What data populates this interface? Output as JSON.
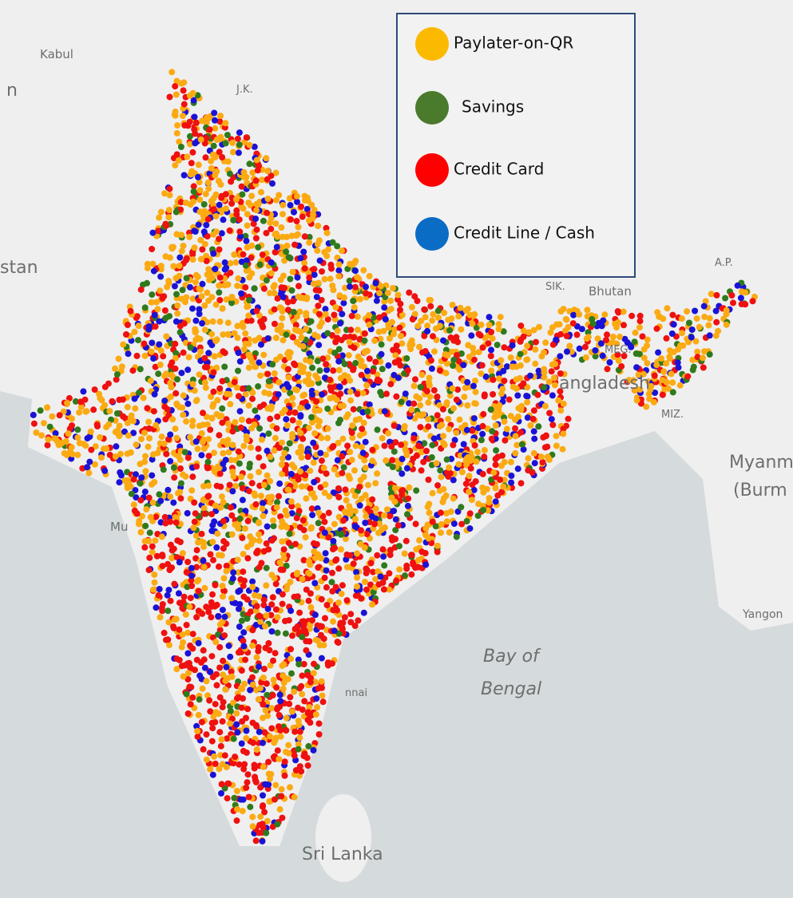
{
  "legend": {
    "items": [
      {
        "label": "Paylater-on-QR",
        "color": "#fbb900"
      },
      {
        "label": "Savings",
        "color": "#4a7a2c"
      },
      {
        "label": "Credit Card",
        "color": "#ff0000"
      },
      {
        "label": "Credit Line / Cash",
        "color": "#0a6cc4"
      }
    ]
  },
  "dot_colors": [
    "#fbaa12",
    "#1a12d6",
    "#ef1010",
    "#2f7a1c"
  ],
  "map_labels": [
    "Kabul",
    "J.K.",
    "n",
    "stan",
    "Bhutan",
    "SIK.",
    "A.P.",
    "MEG.",
    "angladesh",
    "MIZ.",
    "Myanm",
    "(Burm",
    "Mu",
    "Bay of",
    "Bengal",
    "Sri Lanka",
    "Yangon",
    "nnai"
  ]
}
